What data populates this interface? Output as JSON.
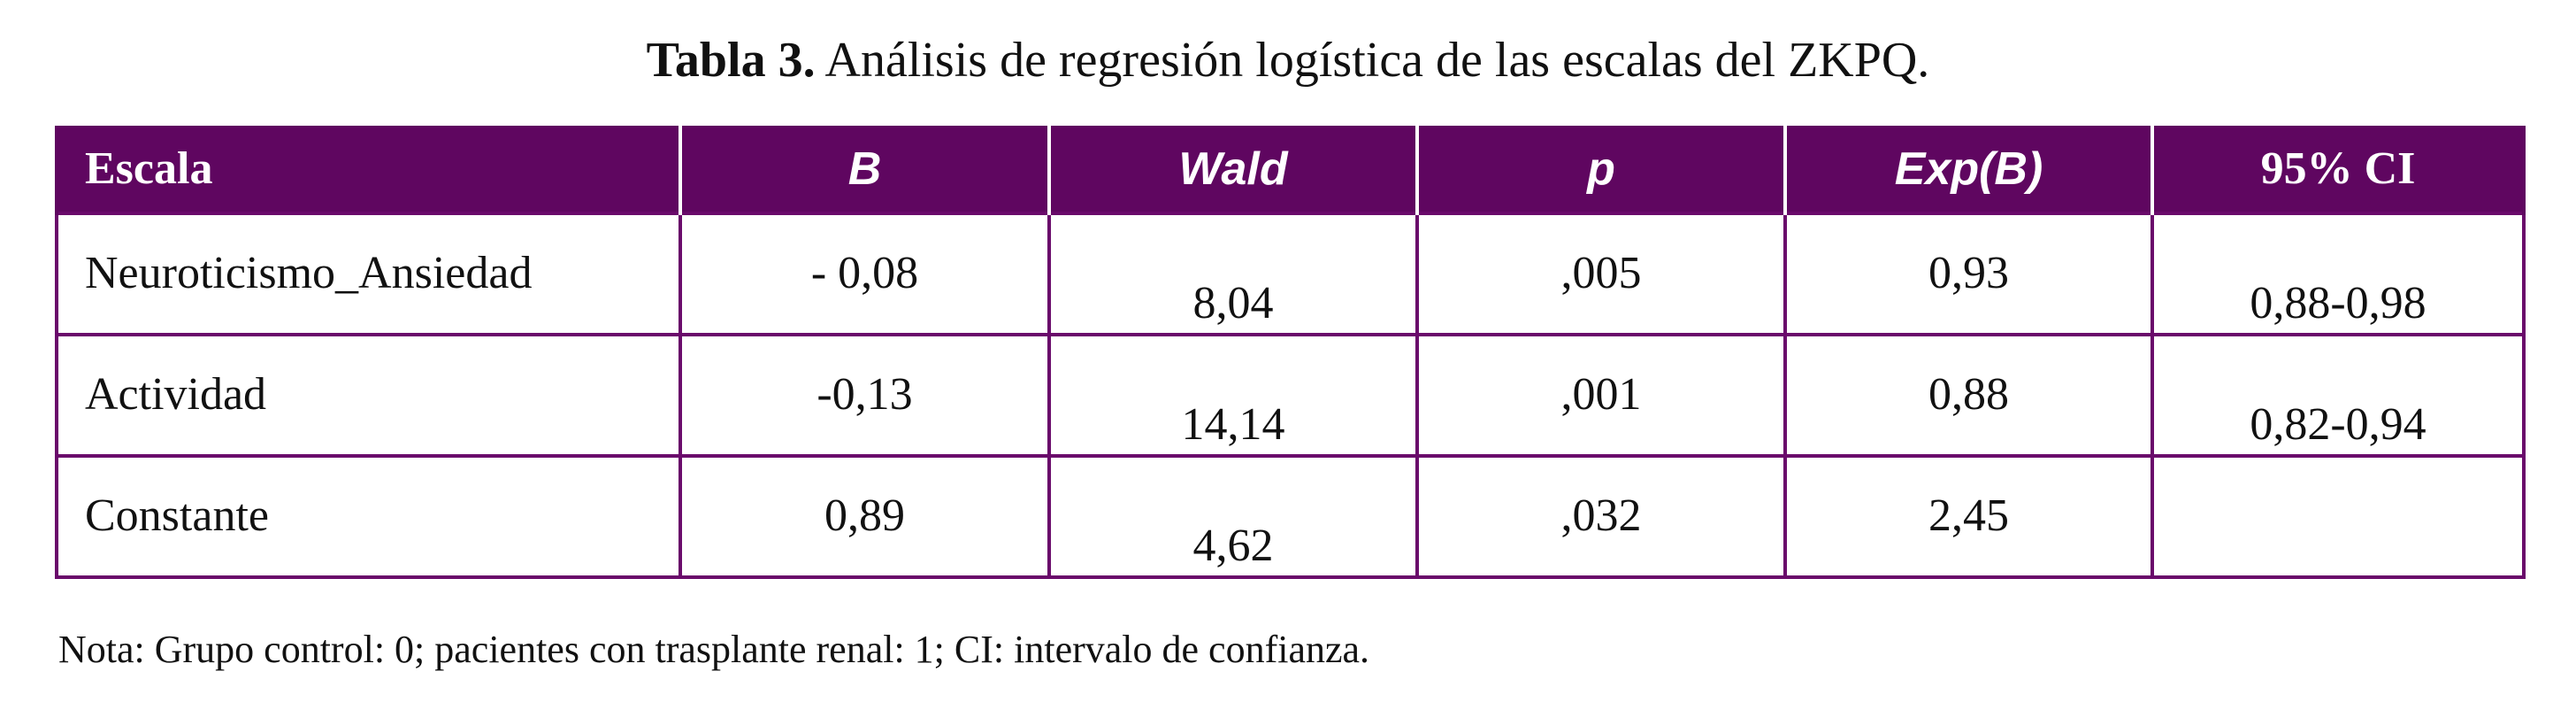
{
  "caption": {
    "label": "Tabla 3.",
    "text": "Análisis de regresión logística de las escalas del ZKPQ."
  },
  "table": {
    "header": [
      "Escala",
      "B",
      "Wald",
      "p",
      "Exp(B)",
      "95% CI"
    ],
    "rows": [
      [
        "Neuroticismo_Ansiedad",
        "- 0,08",
        "8,04",
        ",005",
        "0,93",
        "0,88-0,98"
      ],
      [
        "Actividad",
        "-0,13",
        "14,14",
        ",001",
        "0,88",
        "0,82-0,94"
      ],
      [
        "Constante",
        "0,89",
        "4,62",
        ",032",
        "2,45",
        ""
      ]
    ]
  },
  "note": "Nota: Grupo control: 0; pacientes con trasplante renal: 1; CI: intervalo de confianza."
}
